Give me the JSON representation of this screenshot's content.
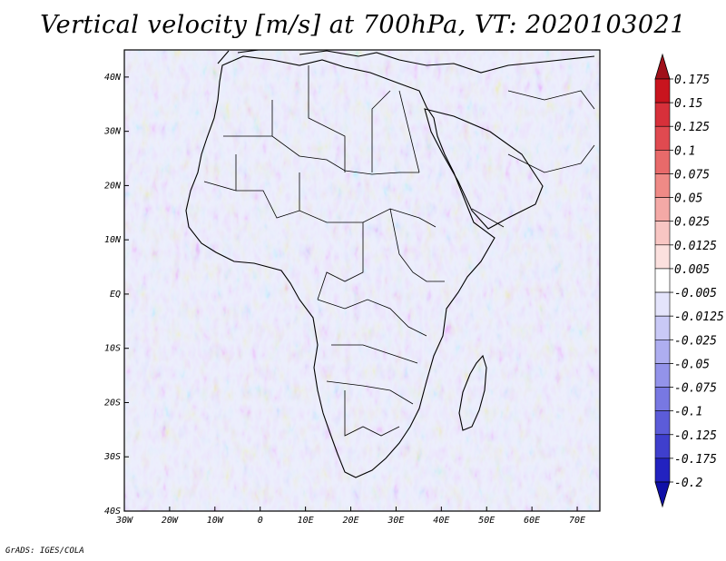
{
  "title": "Vertical velocity [m/s] at 700hPa, VT: 2020103021",
  "credit": "GrADS: IGES/COLA",
  "map": {
    "lon_range": [
      -30,
      75
    ],
    "lat_range": [
      -40,
      45
    ],
    "lon_ticks": [
      "30W",
      "20W",
      "10W",
      "0",
      "10E",
      "20E",
      "30E",
      "40E",
      "50E",
      "60E",
      "70E"
    ],
    "lat_ticks": [
      "40S",
      "30S",
      "20S",
      "10S",
      "EQ",
      "10N",
      "20N",
      "30N",
      "40N"
    ],
    "background_color": "#c9cff5"
  },
  "colorbar": {
    "levels": [
      "0.175",
      "0.15",
      "0.125",
      "0.1",
      "0.075",
      "0.05",
      "0.025",
      "0.0125",
      "0.005",
      "-0.005",
      "-0.0125",
      "-0.025",
      "-0.05",
      "-0.075",
      "-0.1",
      "-0.125",
      "-0.175",
      "-0.2"
    ],
    "colors": [
      "#c8141e",
      "#d7303a",
      "#e04a50",
      "#e86a6a",
      "#ef8a86",
      "#f4a9a6",
      "#f8c6c3",
      "#fbe0de",
      "#ffffff",
      "#e4e4fb",
      "#c9c9f6",
      "#aeaef0",
      "#9393ea",
      "#7878e2",
      "#5c5cd9",
      "#3f3fcd",
      "#2222c0"
    ],
    "top_arrow_color": "#a0101a",
    "bottom_arrow_color": "#1010a8"
  }
}
